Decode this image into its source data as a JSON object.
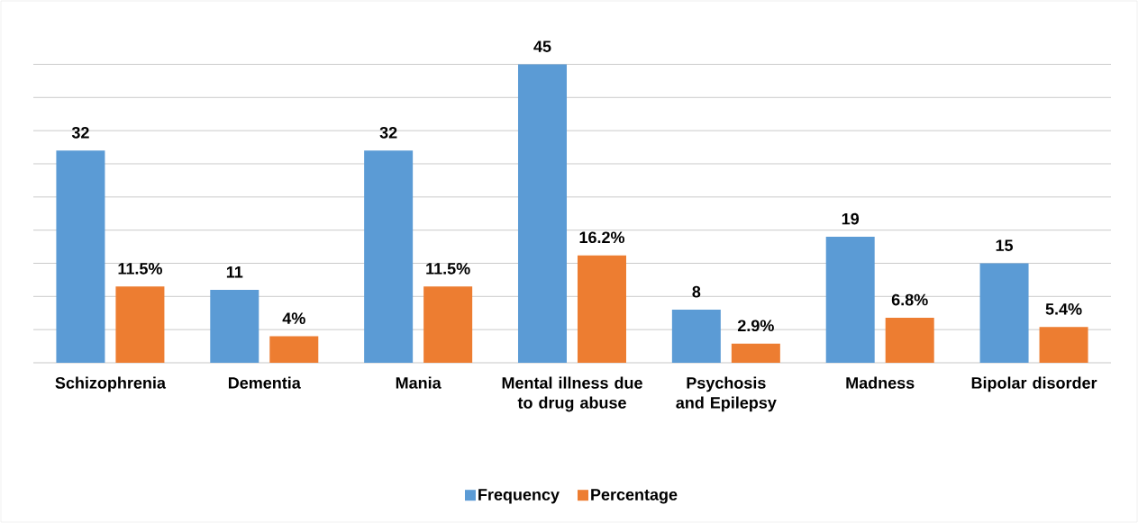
{
  "chart_data": {
    "type": "bar",
    "categories": [
      "Schizophrenia",
      "Dementia",
      "Mania",
      "Mental illness due to drug abuse",
      "Psychosis and Epilepsy",
      "Madness",
      "Bipolar disorder"
    ],
    "series": [
      {
        "name": "Frequency",
        "color": "#5b9bd5",
        "values": [
          32,
          11,
          32,
          45,
          8,
          19,
          15
        ],
        "value_labels": [
          "32",
          "11",
          "32",
          "45",
          "8",
          "19",
          "15"
        ]
      },
      {
        "name": "Percentage",
        "color": "#ed7d31",
        "values": [
          11.5,
          4,
          11.5,
          16.2,
          2.9,
          6.8,
          5.4
        ],
        "value_labels": [
          "11.5%",
          "4%",
          "11.5%",
          "16.2%",
          "2.9%",
          "6.8%",
          "5.4%"
        ]
      }
    ],
    "tick_labels": "x",
    "grid": "y",
    "legend": "bottom"
  }
}
